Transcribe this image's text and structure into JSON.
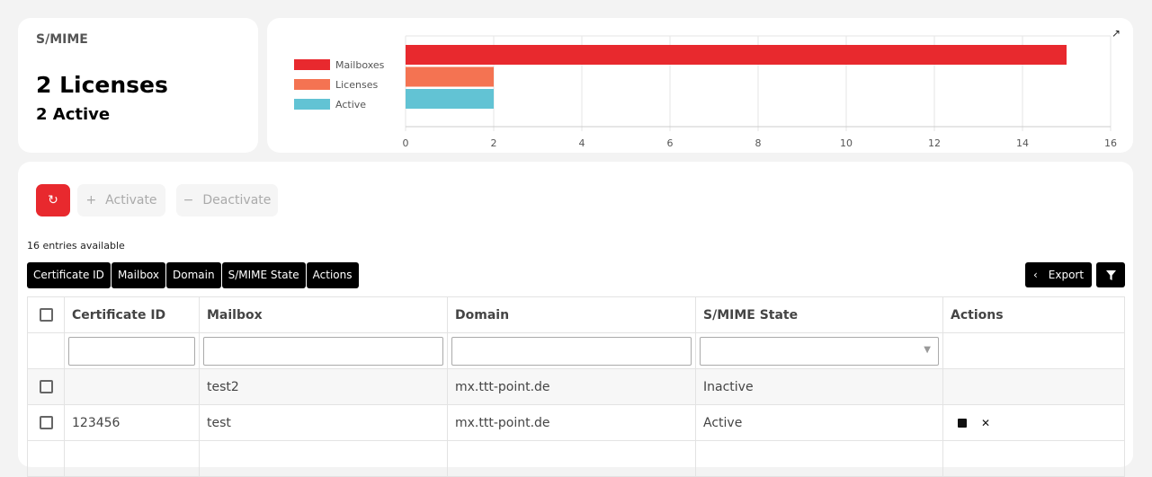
{
  "license_card": {
    "title": "S/MIME",
    "licenses": "2 Licenses",
    "active": "2 Active"
  },
  "chart_data": {
    "type": "bar",
    "orientation": "horizontal",
    "categories": [
      "Mailboxes",
      "Licenses",
      "Active"
    ],
    "values": [
      15,
      2,
      2
    ],
    "colors": [
      "#e8292e",
      "#f47352",
      "#62c3d4"
    ],
    "xlim": [
      0,
      16
    ],
    "xticks": [
      0,
      2,
      4,
      6,
      8,
      10,
      12,
      14,
      16
    ],
    "legend": "left",
    "grid": true
  },
  "toolbar": {
    "refresh": "refresh",
    "activate": "Activate",
    "deactivate": "Deactivate"
  },
  "entries": "16 entries available",
  "column_toggles": [
    "Certificate ID",
    "Mailbox",
    "Domain",
    "S/MIME State",
    "Actions"
  ],
  "export": "Export",
  "table": {
    "headers": [
      "Certificate ID",
      "Mailbox",
      "Domain",
      "S/MIME State",
      "Actions"
    ],
    "rows": [
      [
        "",
        "test2",
        "mx.ttt-point.de",
        "Inactive"
      ],
      [
        "123456",
        "test",
        "mx.ttt-point.de",
        "Active"
      ]
    ]
  }
}
